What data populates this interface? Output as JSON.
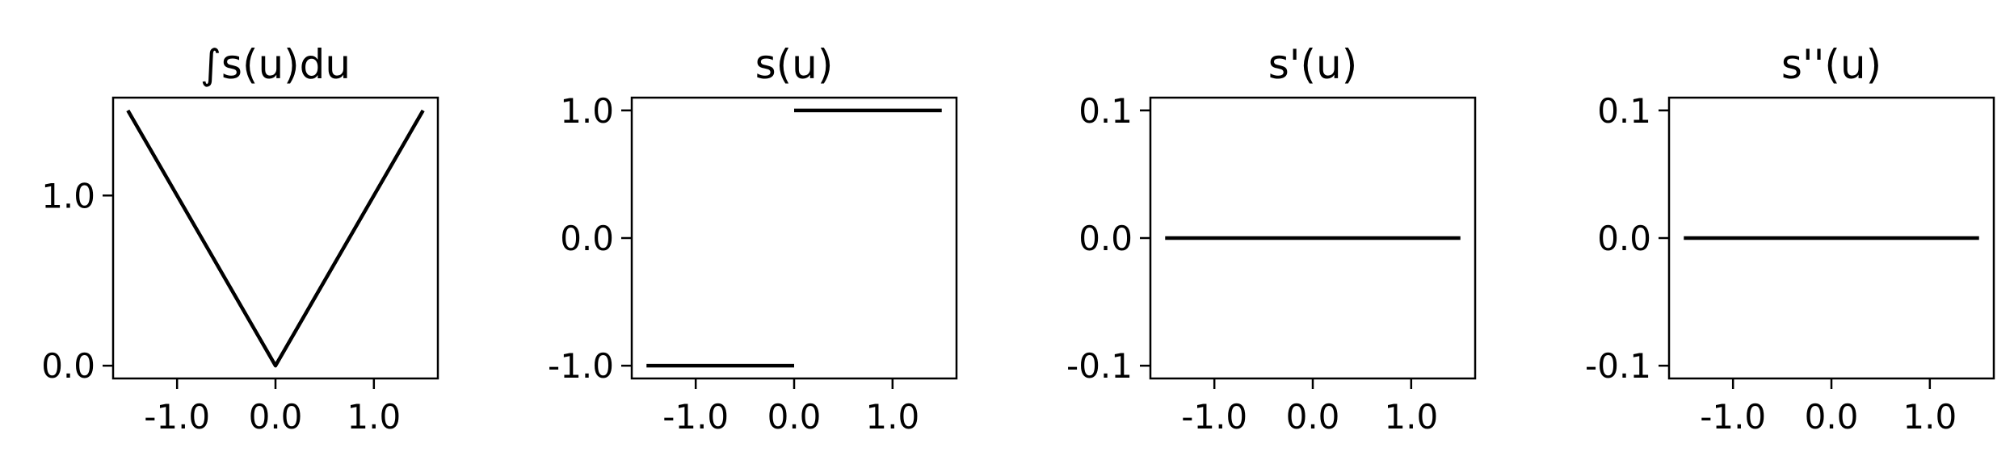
{
  "figure": {
    "panels": [
      {
        "title": "∫s(u)du"
      },
      {
        "title": "s(u)"
      },
      {
        "title": "s'(u)"
      },
      {
        "title": "s''(u)"
      }
    ]
  },
  "chart_data": [
    {
      "type": "line",
      "title": "∫s(u)du",
      "xlabel": "",
      "ylabel": "",
      "xlim": [
        -1.65,
        1.65
      ],
      "ylim": [
        -0.075,
        1.575
      ],
      "xticks": [
        -1.0,
        0.0,
        1.0
      ],
      "xtick_labels": [
        "-1.0",
        "0.0",
        "1.0"
      ],
      "yticks": [
        0.0,
        1.0
      ],
      "ytick_labels": [
        "0.0",
        "1.0"
      ],
      "grid": false,
      "series": [
        {
          "color": "#000000",
          "segments": [
            {
              "x": [
                -1.5,
                0.0,
                1.5
              ],
              "y": [
                1.5,
                0.0,
                1.5
              ]
            }
          ]
        }
      ]
    },
    {
      "type": "line",
      "title": "s(u)",
      "xlabel": "",
      "ylabel": "",
      "xlim": [
        -1.65,
        1.65
      ],
      "ylim": [
        -1.1,
        1.1
      ],
      "xticks": [
        -1.0,
        0.0,
        1.0
      ],
      "xtick_labels": [
        "-1.0",
        "0.0",
        "1.0"
      ],
      "yticks": [
        -1.0,
        0.0,
        1.0
      ],
      "ytick_labels": [
        "-1.0",
        "0.0",
        "1.0"
      ],
      "grid": false,
      "series": [
        {
          "color": "#000000",
          "segments": [
            {
              "x": [
                -1.5,
                0.0
              ],
              "y": [
                -1.0,
                -1.0
              ]
            },
            {
              "x": [
                0.0,
                1.5
              ],
              "y": [
                1.0,
                1.0
              ]
            }
          ]
        }
      ]
    },
    {
      "type": "line",
      "title": "s'(u)",
      "xlabel": "",
      "ylabel": "",
      "xlim": [
        -1.65,
        1.65
      ],
      "ylim": [
        -0.11,
        0.11
      ],
      "xticks": [
        -1.0,
        0.0,
        1.0
      ],
      "xtick_labels": [
        "-1.0",
        "0.0",
        "1.0"
      ],
      "yticks": [
        -0.1,
        0.0,
        0.1
      ],
      "ytick_labels": [
        "-0.1",
        "0.0",
        "0.1"
      ],
      "grid": false,
      "series": [
        {
          "color": "#000000",
          "segments": [
            {
              "x": [
                -1.5,
                1.5
              ],
              "y": [
                0.0,
                0.0
              ]
            }
          ]
        }
      ]
    },
    {
      "type": "line",
      "title": "s''(u)",
      "xlabel": "",
      "ylabel": "",
      "xlim": [
        -1.65,
        1.65
      ],
      "ylim": [
        -0.11,
        0.11
      ],
      "xticks": [
        -1.0,
        0.0,
        1.0
      ],
      "xtick_labels": [
        "-1.0",
        "0.0",
        "1.0"
      ],
      "yticks": [
        -0.1,
        0.0,
        0.1
      ],
      "ytick_labels": [
        "-0.1",
        "0.0",
        "0.1"
      ],
      "grid": false,
      "series": [
        {
          "color": "#000000",
          "segments": [
            {
              "x": [
                -1.5,
                1.5
              ],
              "y": [
                0.0,
                0.0
              ]
            }
          ]
        }
      ]
    }
  ]
}
